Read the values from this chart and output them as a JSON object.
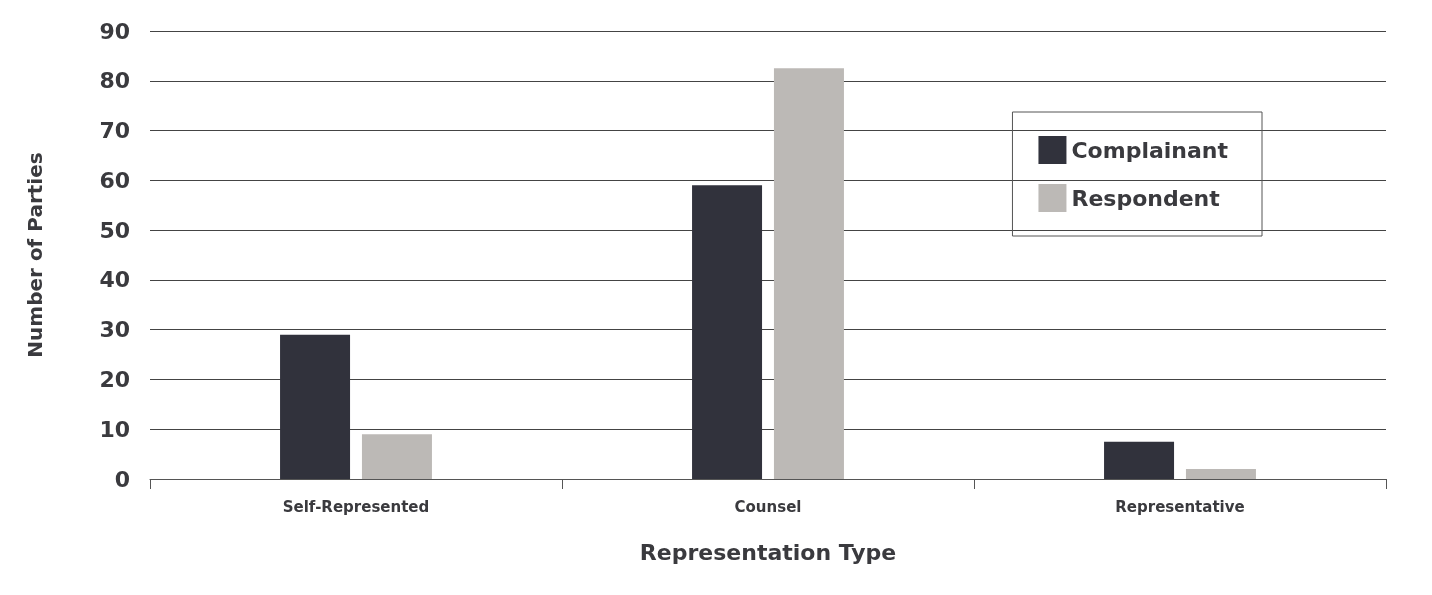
{
  "chart_data": {
    "type": "bar",
    "xlabel": "Representation Type",
    "ylabel": "Number of Parties",
    "categories": [
      "Self-Represented",
      "Counsel",
      "Representative"
    ],
    "series": [
      {
        "name": "Complainant",
        "color": "#31323c",
        "values": [
          29,
          59,
          7.5
        ]
      },
      {
        "name": "Respondent",
        "color": "#bcb9b6",
        "values": [
          9,
          82.5,
          2
        ]
      }
    ],
    "ylim": [
      0,
      90
    ],
    "yticks": [
      0,
      10,
      20,
      30,
      40,
      50,
      60,
      70,
      80,
      90
    ],
    "grid": "y",
    "legend": "top right"
  }
}
